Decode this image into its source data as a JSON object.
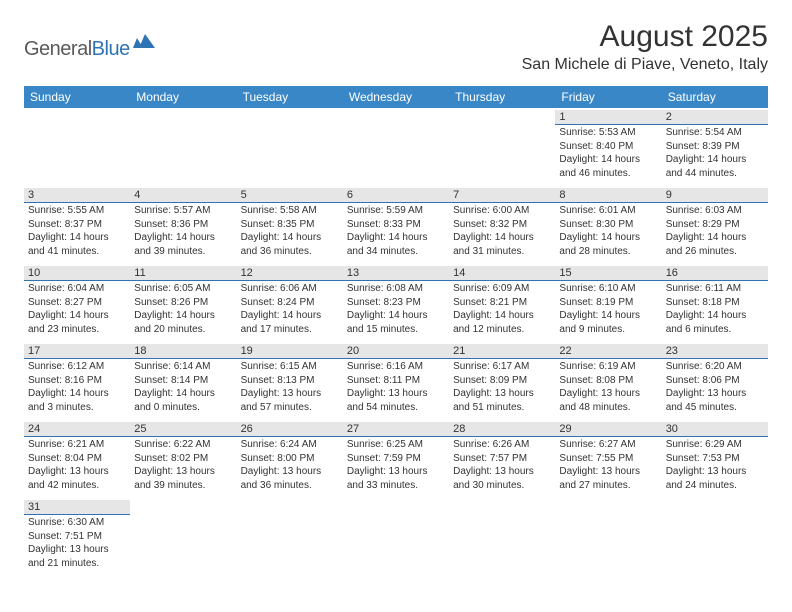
{
  "brand": {
    "text1": "General",
    "text2": "Blue"
  },
  "title": "August 2025",
  "location": "San Michele di Piave, Veneto, Italy",
  "colors": {
    "header_bg": "#3a87c7",
    "header_text": "#ffffff",
    "day_row_bg": "#e6e6e6",
    "accent": "#2e74b5",
    "text": "#333333",
    "logo_gray": "#5a5a5a"
  },
  "weekdays": [
    "Sunday",
    "Monday",
    "Tuesday",
    "Wednesday",
    "Thursday",
    "Friday",
    "Saturday"
  ],
  "weeks": [
    [
      {
        "n": "",
        "sr": "",
        "ss": "",
        "dl": ""
      },
      {
        "n": "",
        "sr": "",
        "ss": "",
        "dl": ""
      },
      {
        "n": "",
        "sr": "",
        "ss": "",
        "dl": ""
      },
      {
        "n": "",
        "sr": "",
        "ss": "",
        "dl": ""
      },
      {
        "n": "",
        "sr": "",
        "ss": "",
        "dl": ""
      },
      {
        "n": "1",
        "sr": "Sunrise: 5:53 AM",
        "ss": "Sunset: 8:40 PM",
        "dl": "Daylight: 14 hours and 46 minutes."
      },
      {
        "n": "2",
        "sr": "Sunrise: 5:54 AM",
        "ss": "Sunset: 8:39 PM",
        "dl": "Daylight: 14 hours and 44 minutes."
      }
    ],
    [
      {
        "n": "3",
        "sr": "Sunrise: 5:55 AM",
        "ss": "Sunset: 8:37 PM",
        "dl": "Daylight: 14 hours and 41 minutes."
      },
      {
        "n": "4",
        "sr": "Sunrise: 5:57 AM",
        "ss": "Sunset: 8:36 PM",
        "dl": "Daylight: 14 hours and 39 minutes."
      },
      {
        "n": "5",
        "sr": "Sunrise: 5:58 AM",
        "ss": "Sunset: 8:35 PM",
        "dl": "Daylight: 14 hours and 36 minutes."
      },
      {
        "n": "6",
        "sr": "Sunrise: 5:59 AM",
        "ss": "Sunset: 8:33 PM",
        "dl": "Daylight: 14 hours and 34 minutes."
      },
      {
        "n": "7",
        "sr": "Sunrise: 6:00 AM",
        "ss": "Sunset: 8:32 PM",
        "dl": "Daylight: 14 hours and 31 minutes."
      },
      {
        "n": "8",
        "sr": "Sunrise: 6:01 AM",
        "ss": "Sunset: 8:30 PM",
        "dl": "Daylight: 14 hours and 28 minutes."
      },
      {
        "n": "9",
        "sr": "Sunrise: 6:03 AM",
        "ss": "Sunset: 8:29 PM",
        "dl": "Daylight: 14 hours and 26 minutes."
      }
    ],
    [
      {
        "n": "10",
        "sr": "Sunrise: 6:04 AM",
        "ss": "Sunset: 8:27 PM",
        "dl": "Daylight: 14 hours and 23 minutes."
      },
      {
        "n": "11",
        "sr": "Sunrise: 6:05 AM",
        "ss": "Sunset: 8:26 PM",
        "dl": "Daylight: 14 hours and 20 minutes."
      },
      {
        "n": "12",
        "sr": "Sunrise: 6:06 AM",
        "ss": "Sunset: 8:24 PM",
        "dl": "Daylight: 14 hours and 17 minutes."
      },
      {
        "n": "13",
        "sr": "Sunrise: 6:08 AM",
        "ss": "Sunset: 8:23 PM",
        "dl": "Daylight: 14 hours and 15 minutes."
      },
      {
        "n": "14",
        "sr": "Sunrise: 6:09 AM",
        "ss": "Sunset: 8:21 PM",
        "dl": "Daylight: 14 hours and 12 minutes."
      },
      {
        "n": "15",
        "sr": "Sunrise: 6:10 AM",
        "ss": "Sunset: 8:19 PM",
        "dl": "Daylight: 14 hours and 9 minutes."
      },
      {
        "n": "16",
        "sr": "Sunrise: 6:11 AM",
        "ss": "Sunset: 8:18 PM",
        "dl": "Daylight: 14 hours and 6 minutes."
      }
    ],
    [
      {
        "n": "17",
        "sr": "Sunrise: 6:12 AM",
        "ss": "Sunset: 8:16 PM",
        "dl": "Daylight: 14 hours and 3 minutes."
      },
      {
        "n": "18",
        "sr": "Sunrise: 6:14 AM",
        "ss": "Sunset: 8:14 PM",
        "dl": "Daylight: 14 hours and 0 minutes."
      },
      {
        "n": "19",
        "sr": "Sunrise: 6:15 AM",
        "ss": "Sunset: 8:13 PM",
        "dl": "Daylight: 13 hours and 57 minutes."
      },
      {
        "n": "20",
        "sr": "Sunrise: 6:16 AM",
        "ss": "Sunset: 8:11 PM",
        "dl": "Daylight: 13 hours and 54 minutes."
      },
      {
        "n": "21",
        "sr": "Sunrise: 6:17 AM",
        "ss": "Sunset: 8:09 PM",
        "dl": "Daylight: 13 hours and 51 minutes."
      },
      {
        "n": "22",
        "sr": "Sunrise: 6:19 AM",
        "ss": "Sunset: 8:08 PM",
        "dl": "Daylight: 13 hours and 48 minutes."
      },
      {
        "n": "23",
        "sr": "Sunrise: 6:20 AM",
        "ss": "Sunset: 8:06 PM",
        "dl": "Daylight: 13 hours and 45 minutes."
      }
    ],
    [
      {
        "n": "24",
        "sr": "Sunrise: 6:21 AM",
        "ss": "Sunset: 8:04 PM",
        "dl": "Daylight: 13 hours and 42 minutes."
      },
      {
        "n": "25",
        "sr": "Sunrise: 6:22 AM",
        "ss": "Sunset: 8:02 PM",
        "dl": "Daylight: 13 hours and 39 minutes."
      },
      {
        "n": "26",
        "sr": "Sunrise: 6:24 AM",
        "ss": "Sunset: 8:00 PM",
        "dl": "Daylight: 13 hours and 36 minutes."
      },
      {
        "n": "27",
        "sr": "Sunrise: 6:25 AM",
        "ss": "Sunset: 7:59 PM",
        "dl": "Daylight: 13 hours and 33 minutes."
      },
      {
        "n": "28",
        "sr": "Sunrise: 6:26 AM",
        "ss": "Sunset: 7:57 PM",
        "dl": "Daylight: 13 hours and 30 minutes."
      },
      {
        "n": "29",
        "sr": "Sunrise: 6:27 AM",
        "ss": "Sunset: 7:55 PM",
        "dl": "Daylight: 13 hours and 27 minutes."
      },
      {
        "n": "30",
        "sr": "Sunrise: 6:29 AM",
        "ss": "Sunset: 7:53 PM",
        "dl": "Daylight: 13 hours and 24 minutes."
      }
    ],
    [
      {
        "n": "31",
        "sr": "Sunrise: 6:30 AM",
        "ss": "Sunset: 7:51 PM",
        "dl": "Daylight: 13 hours and 21 minutes."
      },
      {
        "n": "",
        "sr": "",
        "ss": "",
        "dl": ""
      },
      {
        "n": "",
        "sr": "",
        "ss": "",
        "dl": ""
      },
      {
        "n": "",
        "sr": "",
        "ss": "",
        "dl": ""
      },
      {
        "n": "",
        "sr": "",
        "ss": "",
        "dl": ""
      },
      {
        "n": "",
        "sr": "",
        "ss": "",
        "dl": ""
      },
      {
        "n": "",
        "sr": "",
        "ss": "",
        "dl": ""
      }
    ]
  ]
}
